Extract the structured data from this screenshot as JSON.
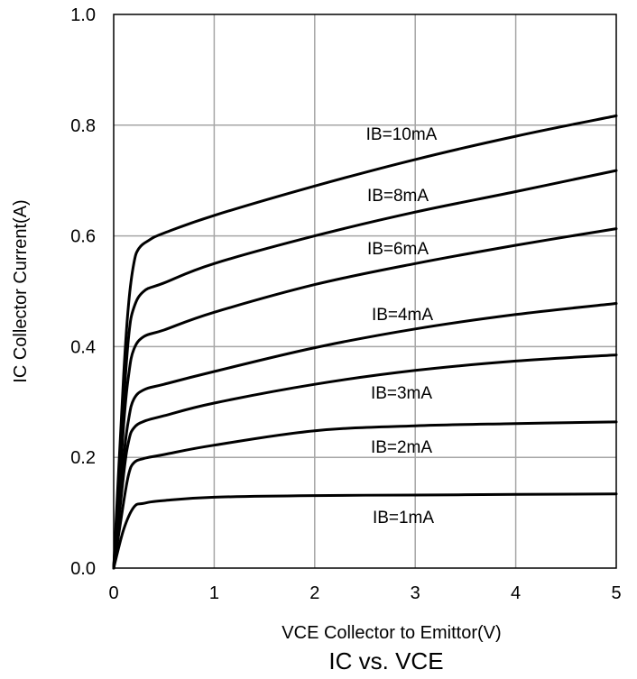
{
  "chart_data": {
    "type": "line",
    "title": "IC vs. VCE",
    "xlabel": "VCE Collector to Emittor(V)",
    "ylabel": "IC Collector Current(A)",
    "xlim": [
      0,
      5
    ],
    "ylim": [
      0,
      1.0
    ],
    "x_ticks": [
      "0",
      "1",
      "2",
      "3",
      "4",
      "5"
    ],
    "y_ticks": [
      "0.0",
      "0.2",
      "0.4",
      "0.6",
      "0.8",
      "1.0"
    ],
    "grid": true,
    "line_color": "#000000",
    "grid_color": "#a6a6a6",
    "series": [
      {
        "name": "IB=1mA",
        "x": [
          0,
          0.1,
          0.2,
          0.3,
          0.5,
          1,
          2,
          3,
          4,
          5
        ],
        "values": [
          0,
          0.07,
          0.11,
          0.117,
          0.122,
          0.128,
          0.131,
          0.132,
          0.133,
          0.134
        ]
      },
      {
        "name": "IB=2mA",
        "x": [
          0,
          0.1,
          0.15,
          0.2,
          0.3,
          0.5,
          1,
          2,
          3,
          4,
          5
        ],
        "values": [
          0,
          0.12,
          0.17,
          0.19,
          0.198,
          0.205,
          0.222,
          0.248,
          0.257,
          0.261,
          0.264
        ]
      },
      {
        "name": "IB=3mA",
        "x": [
          0,
          0.1,
          0.15,
          0.2,
          0.3,
          0.5,
          1,
          2,
          3,
          4,
          5
        ],
        "values": [
          0,
          0.17,
          0.23,
          0.253,
          0.265,
          0.275,
          0.298,
          0.332,
          0.357,
          0.374,
          0.385
        ]
      },
      {
        "name": "IB=4mA",
        "x": [
          0,
          0.1,
          0.15,
          0.2,
          0.3,
          0.5,
          1,
          2,
          3,
          4,
          5
        ],
        "values": [
          0,
          0.2,
          0.27,
          0.305,
          0.322,
          0.332,
          0.355,
          0.398,
          0.432,
          0.458,
          0.478
        ]
      },
      {
        "name": "IB=6mA",
        "x": [
          0,
          0.1,
          0.15,
          0.2,
          0.3,
          0.5,
          1,
          2,
          3,
          4,
          5
        ],
        "values": [
          0,
          0.26,
          0.35,
          0.395,
          0.418,
          0.43,
          0.462,
          0.512,
          0.55,
          0.583,
          0.613
        ]
      },
      {
        "name": "IB=8mA",
        "x": [
          0,
          0.1,
          0.15,
          0.2,
          0.3,
          0.5,
          1,
          2,
          3,
          4,
          5
        ],
        "values": [
          0,
          0.3,
          0.42,
          0.47,
          0.5,
          0.515,
          0.55,
          0.6,
          0.643,
          0.68,
          0.718
        ]
      },
      {
        "name": "IB=10mA",
        "x": [
          0,
          0.1,
          0.15,
          0.2,
          0.25,
          0.35,
          0.5,
          1,
          2,
          3,
          4,
          5
        ],
        "values": [
          0,
          0.35,
          0.48,
          0.55,
          0.577,
          0.592,
          0.605,
          0.637,
          0.69,
          0.738,
          0.78,
          0.817
        ]
      }
    ]
  }
}
